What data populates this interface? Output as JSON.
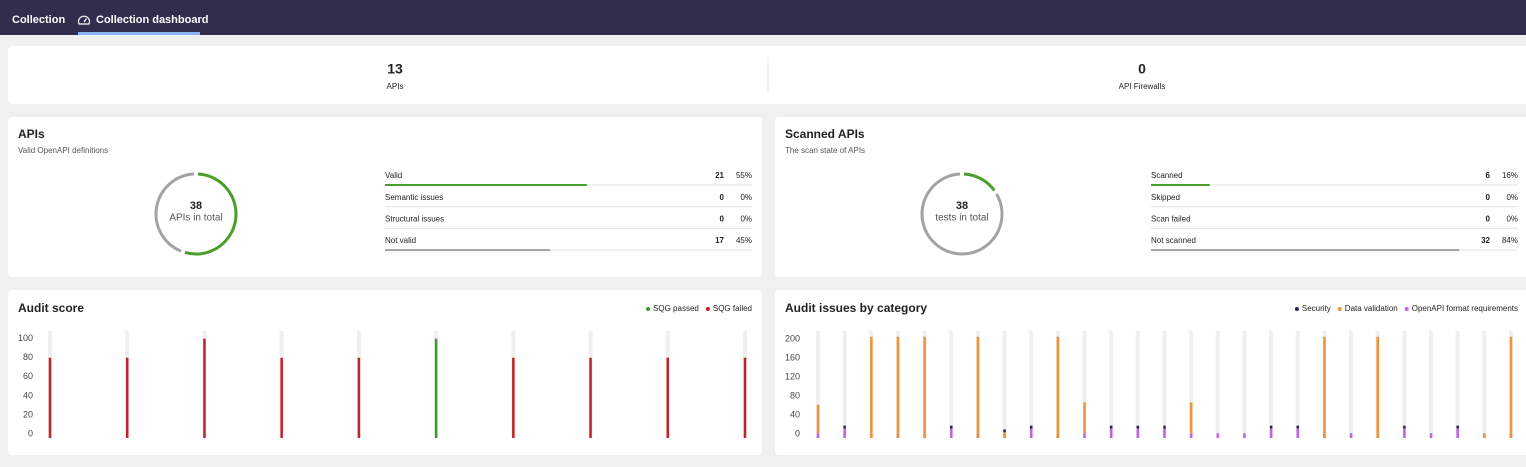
{
  "nav": {
    "tabs": [
      "Collection",
      "Collection dashboard"
    ]
  },
  "summary": [
    {
      "value": 13,
      "label": "APIs"
    },
    {
      "value": 0,
      "label": "API Firewalls"
    }
  ],
  "donut_cards": [
    {
      "title": "APIs",
      "subtitle": "Valid OpenAPI definitions",
      "total": 38,
      "total_label": "APIs in total",
      "rows": [
        {
          "label": "Valid",
          "count": 21,
          "percent": 55,
          "percent_label": "55%",
          "color": "#4a9e2a"
        },
        {
          "label": "Semantic issues",
          "count": 0,
          "percent": 0,
          "percent_label": "0%"
        },
        {
          "label": "Structural issues",
          "count": 0,
          "percent": 0,
          "percent_label": "0%"
        },
        {
          "label": "Not valid",
          "count": 17,
          "percent": 45,
          "percent_label": "45%",
          "color": "#a3a3a3"
        }
      ]
    },
    {
      "title": "Scanned APIs",
      "subtitle": "The scan state of APIs",
      "total": 38,
      "total_label": "tests in total",
      "rows": [
        {
          "label": "Scanned",
          "count": 6,
          "percent": 16,
          "percent_label": "16%",
          "color": "#4a9e2a"
        },
        {
          "label": "Skipped",
          "count": 0,
          "percent": 0,
          "percent_label": "0%"
        },
        {
          "label": "Scan failed",
          "count": 0,
          "percent": 0,
          "percent_label": "0%"
        },
        {
          "label": "Not scanned",
          "count": 32,
          "percent": 84,
          "percent_label": "84%",
          "color": "#a3a3a3"
        }
      ]
    }
  ],
  "chart_data": [
    {
      "type": "bar",
      "title": "Audit score",
      "stacked": false,
      "legend": "top-right",
      "categories": [
        null,
        null,
        null,
        null,
        null,
        null,
        null,
        null,
        null,
        null
      ],
      "series": [
        {
          "name": "SQG passed",
          "color": "#3a9a2e",
          "values": [
            null,
            null,
            null,
            null,
            null,
            100,
            null,
            null,
            null,
            null
          ]
        },
        {
          "name": "SQG failed",
          "color": "#c0232c",
          "values": [
            80,
            80,
            100,
            80,
            80,
            null,
            80,
            80,
            80,
            80
          ]
        }
      ],
      "ylim": [
        -4,
        108
      ],
      "yticks": [
        0,
        20,
        40,
        60,
        80,
        100
      ]
    },
    {
      "type": "bar",
      "title": "Audit issues by category",
      "stacked": true,
      "legend": "top-right",
      "categories": [
        null,
        null,
        null,
        null,
        null,
        null,
        null,
        null,
        null,
        null,
        null,
        null,
        null,
        null,
        null,
        null,
        null,
        null,
        null,
        null,
        null,
        null,
        null,
        null,
        null,
        null,
        null
      ],
      "series": [
        {
          "name": "Security",
          "color": "#2b2350",
          "values": [
            0,
            6,
            0,
            0,
            0,
            6,
            0,
            6,
            6,
            0,
            0,
            6,
            6,
            6,
            0,
            0,
            0,
            6,
            6,
            0,
            0,
            0,
            6,
            0,
            6,
            0,
            0
          ]
        },
        {
          "name": "Data validation",
          "color": "#f0923a",
          "values": [
            60,
            0,
            205,
            205,
            205,
            0,
            205,
            4,
            0,
            205,
            65,
            0,
            0,
            0,
            65,
            0,
            0,
            0,
            0,
            205,
            0,
            205,
            0,
            0,
            0,
            2,
            205
          ]
        },
        {
          "name": "OpenAPI format requirements",
          "color": "#c062e8",
          "values": [
            2,
            12,
            0,
            0,
            0,
            12,
            0,
            0,
            12,
            0,
            2,
            12,
            12,
            12,
            2,
            2,
            2,
            12,
            12,
            0,
            2,
            0,
            12,
            2,
            12,
            0,
            0
          ]
        }
      ],
      "ylim": [
        -8,
        217
      ],
      "yticks": [
        0,
        40,
        80,
        120,
        160,
        200
      ]
    }
  ]
}
